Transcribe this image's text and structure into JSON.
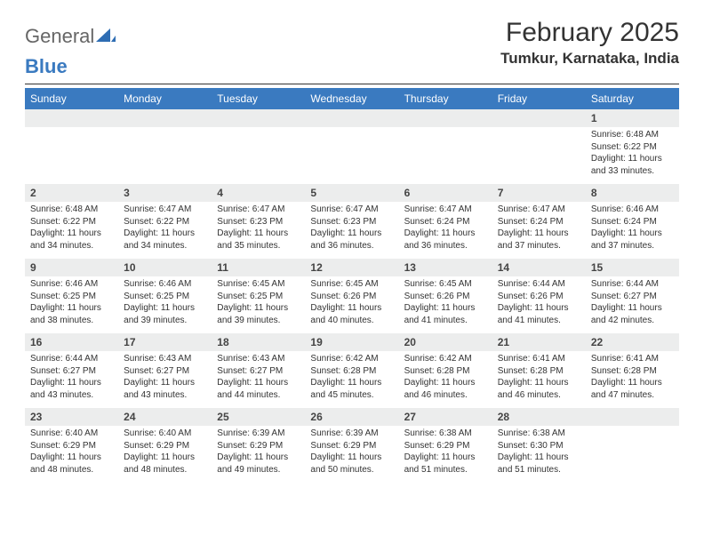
{
  "logo": {
    "general": "General",
    "blue": "Blue"
  },
  "title": "February 2025",
  "location": "Tumkur, Karnataka, India",
  "colors": {
    "header_bg": "#3a7ac0",
    "header_text": "#ffffff",
    "daynum_bg": "#eceded",
    "text": "#333333",
    "page_bg": "#ffffff"
  },
  "weekdays": [
    "Sunday",
    "Monday",
    "Tuesday",
    "Wednesday",
    "Thursday",
    "Friday",
    "Saturday"
  ],
  "weeks": [
    [
      {
        "n": "",
        "sunrise": "",
        "sunset": "",
        "daylight": ""
      },
      {
        "n": "",
        "sunrise": "",
        "sunset": "",
        "daylight": ""
      },
      {
        "n": "",
        "sunrise": "",
        "sunset": "",
        "daylight": ""
      },
      {
        "n": "",
        "sunrise": "",
        "sunset": "",
        "daylight": ""
      },
      {
        "n": "",
        "sunrise": "",
        "sunset": "",
        "daylight": ""
      },
      {
        "n": "",
        "sunrise": "",
        "sunset": "",
        "daylight": ""
      },
      {
        "n": "1",
        "sunrise": "Sunrise: 6:48 AM",
        "sunset": "Sunset: 6:22 PM",
        "daylight": "Daylight: 11 hours and 33 minutes."
      }
    ],
    [
      {
        "n": "2",
        "sunrise": "Sunrise: 6:48 AM",
        "sunset": "Sunset: 6:22 PM",
        "daylight": "Daylight: 11 hours and 34 minutes."
      },
      {
        "n": "3",
        "sunrise": "Sunrise: 6:47 AM",
        "sunset": "Sunset: 6:22 PM",
        "daylight": "Daylight: 11 hours and 34 minutes."
      },
      {
        "n": "4",
        "sunrise": "Sunrise: 6:47 AM",
        "sunset": "Sunset: 6:23 PM",
        "daylight": "Daylight: 11 hours and 35 minutes."
      },
      {
        "n": "5",
        "sunrise": "Sunrise: 6:47 AM",
        "sunset": "Sunset: 6:23 PM",
        "daylight": "Daylight: 11 hours and 36 minutes."
      },
      {
        "n": "6",
        "sunrise": "Sunrise: 6:47 AM",
        "sunset": "Sunset: 6:24 PM",
        "daylight": "Daylight: 11 hours and 36 minutes."
      },
      {
        "n": "7",
        "sunrise": "Sunrise: 6:47 AM",
        "sunset": "Sunset: 6:24 PM",
        "daylight": "Daylight: 11 hours and 37 minutes."
      },
      {
        "n": "8",
        "sunrise": "Sunrise: 6:46 AM",
        "sunset": "Sunset: 6:24 PM",
        "daylight": "Daylight: 11 hours and 37 minutes."
      }
    ],
    [
      {
        "n": "9",
        "sunrise": "Sunrise: 6:46 AM",
        "sunset": "Sunset: 6:25 PM",
        "daylight": "Daylight: 11 hours and 38 minutes."
      },
      {
        "n": "10",
        "sunrise": "Sunrise: 6:46 AM",
        "sunset": "Sunset: 6:25 PM",
        "daylight": "Daylight: 11 hours and 39 minutes."
      },
      {
        "n": "11",
        "sunrise": "Sunrise: 6:45 AM",
        "sunset": "Sunset: 6:25 PM",
        "daylight": "Daylight: 11 hours and 39 minutes."
      },
      {
        "n": "12",
        "sunrise": "Sunrise: 6:45 AM",
        "sunset": "Sunset: 6:26 PM",
        "daylight": "Daylight: 11 hours and 40 minutes."
      },
      {
        "n": "13",
        "sunrise": "Sunrise: 6:45 AM",
        "sunset": "Sunset: 6:26 PM",
        "daylight": "Daylight: 11 hours and 41 minutes."
      },
      {
        "n": "14",
        "sunrise": "Sunrise: 6:44 AM",
        "sunset": "Sunset: 6:26 PM",
        "daylight": "Daylight: 11 hours and 41 minutes."
      },
      {
        "n": "15",
        "sunrise": "Sunrise: 6:44 AM",
        "sunset": "Sunset: 6:27 PM",
        "daylight": "Daylight: 11 hours and 42 minutes."
      }
    ],
    [
      {
        "n": "16",
        "sunrise": "Sunrise: 6:44 AM",
        "sunset": "Sunset: 6:27 PM",
        "daylight": "Daylight: 11 hours and 43 minutes."
      },
      {
        "n": "17",
        "sunrise": "Sunrise: 6:43 AM",
        "sunset": "Sunset: 6:27 PM",
        "daylight": "Daylight: 11 hours and 43 minutes."
      },
      {
        "n": "18",
        "sunrise": "Sunrise: 6:43 AM",
        "sunset": "Sunset: 6:27 PM",
        "daylight": "Daylight: 11 hours and 44 minutes."
      },
      {
        "n": "19",
        "sunrise": "Sunrise: 6:42 AM",
        "sunset": "Sunset: 6:28 PM",
        "daylight": "Daylight: 11 hours and 45 minutes."
      },
      {
        "n": "20",
        "sunrise": "Sunrise: 6:42 AM",
        "sunset": "Sunset: 6:28 PM",
        "daylight": "Daylight: 11 hours and 46 minutes."
      },
      {
        "n": "21",
        "sunrise": "Sunrise: 6:41 AM",
        "sunset": "Sunset: 6:28 PM",
        "daylight": "Daylight: 11 hours and 46 minutes."
      },
      {
        "n": "22",
        "sunrise": "Sunrise: 6:41 AM",
        "sunset": "Sunset: 6:28 PM",
        "daylight": "Daylight: 11 hours and 47 minutes."
      }
    ],
    [
      {
        "n": "23",
        "sunrise": "Sunrise: 6:40 AM",
        "sunset": "Sunset: 6:29 PM",
        "daylight": "Daylight: 11 hours and 48 minutes."
      },
      {
        "n": "24",
        "sunrise": "Sunrise: 6:40 AM",
        "sunset": "Sunset: 6:29 PM",
        "daylight": "Daylight: 11 hours and 48 minutes."
      },
      {
        "n": "25",
        "sunrise": "Sunrise: 6:39 AM",
        "sunset": "Sunset: 6:29 PM",
        "daylight": "Daylight: 11 hours and 49 minutes."
      },
      {
        "n": "26",
        "sunrise": "Sunrise: 6:39 AM",
        "sunset": "Sunset: 6:29 PM",
        "daylight": "Daylight: 11 hours and 50 minutes."
      },
      {
        "n": "27",
        "sunrise": "Sunrise: 6:38 AM",
        "sunset": "Sunset: 6:29 PM",
        "daylight": "Daylight: 11 hours and 51 minutes."
      },
      {
        "n": "28",
        "sunrise": "Sunrise: 6:38 AM",
        "sunset": "Sunset: 6:30 PM",
        "daylight": "Daylight: 11 hours and 51 minutes."
      },
      {
        "n": "",
        "sunrise": "",
        "sunset": "",
        "daylight": ""
      }
    ]
  ]
}
